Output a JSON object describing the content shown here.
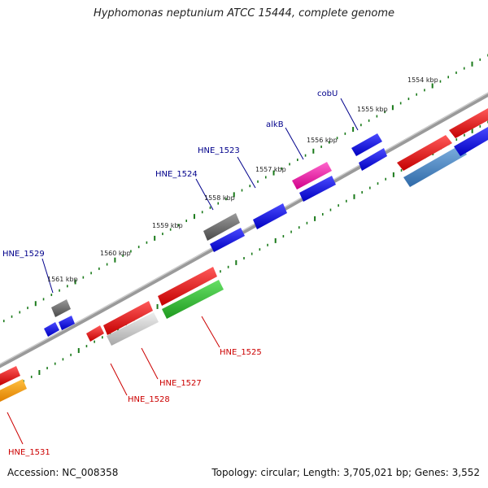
{
  "title": "Hyphomonas neptunium ATCC 15444, complete genome",
  "accession": "Accession: NC_008358",
  "topology": "Topology: circular; Length: 3,705,021 bp; Genes: 3,552",
  "colors": {
    "forward_label": "#00008b",
    "reverse_label": "#cc0000",
    "backbone": "#888888",
    "tick": "#1a7a1a"
  },
  "kbp_ticks": [
    "1554 kbp",
    "1555 kbp",
    "1556 kbp",
    "1557 kbp",
    "1558 kbp",
    "1559 kbp",
    "1560 kbp",
    "1561 kbp"
  ],
  "forward_genes": [
    "cobU",
    "alkB",
    "HNE_1523",
    "HNE_1524",
    "HNE_1529"
  ],
  "reverse_genes": [
    "HNE_1525",
    "HNE_1527",
    "HNE_1528",
    "HNE_1531"
  ]
}
